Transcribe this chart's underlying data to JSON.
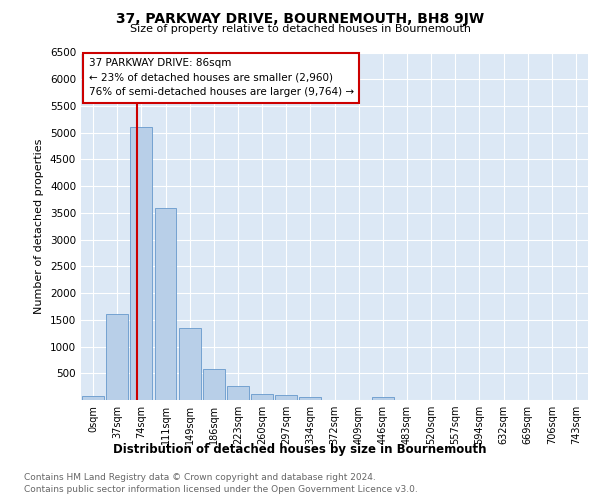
{
  "title": "37, PARKWAY DRIVE, BOURNEMOUTH, BH8 9JW",
  "subtitle": "Size of property relative to detached houses in Bournemouth",
  "xlabel": "Distribution of detached houses by size in Bournemouth",
  "ylabel": "Number of detached properties",
  "bar_labels": [
    "0sqm",
    "37sqm",
    "74sqm",
    "111sqm",
    "149sqm",
    "186sqm",
    "223sqm",
    "260sqm",
    "297sqm",
    "334sqm",
    "372sqm",
    "409sqm",
    "446sqm",
    "483sqm",
    "520sqm",
    "557sqm",
    "594sqm",
    "632sqm",
    "669sqm",
    "706sqm",
    "743sqm"
  ],
  "bar_values": [
    80,
    1600,
    5100,
    3600,
    1350,
    580,
    270,
    120,
    100,
    60,
    0,
    0,
    60,
    0,
    0,
    0,
    0,
    0,
    0,
    0,
    0
  ],
  "bar_color": "#b8cfe8",
  "bar_edge_color": "#6699cc",
  "ylim": [
    0,
    6500
  ],
  "yticks": [
    0,
    500,
    1000,
    1500,
    2000,
    2500,
    3000,
    3500,
    4000,
    4500,
    5000,
    5500,
    6000,
    6500
  ],
  "vline_position": 2.32,
  "annotation_line1": "37 PARKWAY DRIVE: 86sqm",
  "annotation_line2": "← 23% of detached houses are smaller (2,960)",
  "annotation_line3": "76% of semi-detached houses are larger (9,764) →",
  "vline_color": "#cc0000",
  "box_edge_color": "#cc0000",
  "background_color": "#dce8f5",
  "footer_line1": "Contains HM Land Registry data © Crown copyright and database right 2024.",
  "footer_line2": "Contains public sector information licensed under the Open Government Licence v3.0."
}
